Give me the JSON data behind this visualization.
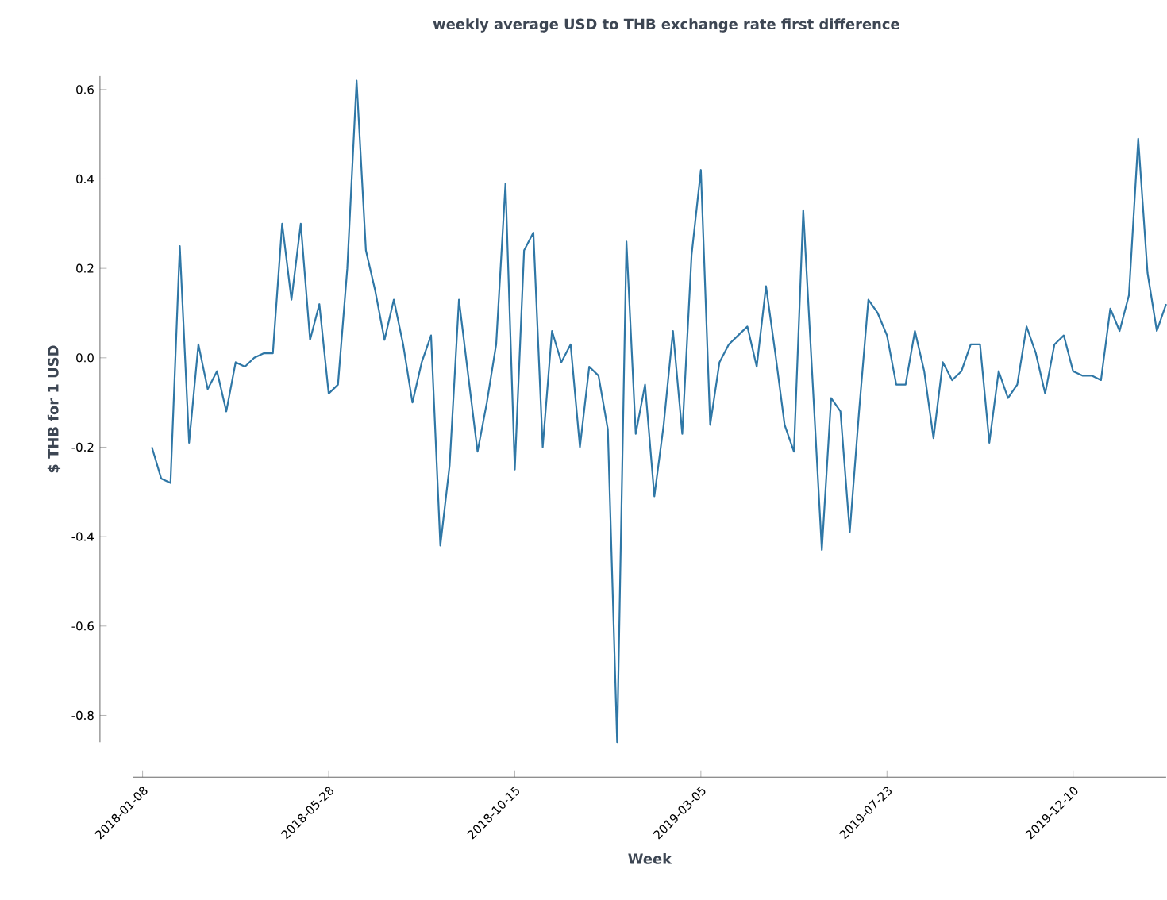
{
  "chart_data": {
    "type": "line",
    "title": "weekly average USD to THB exchange rate first difference",
    "xlabel": "Week",
    "ylabel": "$ THB for 1 USD",
    "categories": [
      "2018-01-08",
      null,
      null,
      null,
      null,
      null,
      null,
      null,
      null,
      null,
      null,
      null,
      null,
      null,
      null,
      null,
      null,
      null,
      null,
      null,
      "2018-05-28",
      null,
      null,
      null,
      null,
      null,
      null,
      null,
      null,
      null,
      null,
      null,
      null,
      null,
      null,
      null,
      null,
      null,
      null,
      null,
      "2018-10-15",
      null,
      null,
      null,
      null,
      null,
      null,
      null,
      null,
      null,
      null,
      null,
      null,
      null,
      null,
      null,
      null,
      null,
      null,
      null,
      "2019-03-05",
      null,
      null,
      null,
      null,
      null,
      null,
      null,
      null,
      null,
      null,
      null,
      null,
      null,
      null,
      null,
      null,
      null,
      null,
      null,
      "2019-07-23",
      null,
      null,
      null,
      null,
      null,
      null,
      null,
      null,
      null,
      null,
      null,
      null,
      null,
      null,
      null,
      null,
      null,
      null,
      null,
      "2019-12-10",
      null,
      null,
      null,
      null,
      null,
      null,
      null,
      null,
      null,
      null
    ],
    "values": [
      null,
      -0.2,
      -0.27,
      -0.28,
      0.25,
      -0.19,
      0.03,
      -0.07,
      -0.03,
      -0.12,
      -0.01,
      -0.02,
      0.0,
      0.01,
      0.01,
      0.3,
      0.13,
      0.3,
      0.04,
      0.12,
      -0.08,
      -0.06,
      0.2,
      0.62,
      0.24,
      0.15,
      0.04,
      0.13,
      0.03,
      -0.1,
      -0.01,
      0.05,
      -0.42,
      -0.24,
      0.13,
      -0.04,
      -0.21,
      -0.1,
      0.03,
      0.39,
      -0.25,
      0.24,
      0.28,
      -0.2,
      0.06,
      -0.01,
      0.03,
      -0.2,
      -0.02,
      -0.04,
      -0.16,
      -0.86,
      0.26,
      -0.17,
      -0.06,
      -0.31,
      -0.15,
      0.06,
      -0.17,
      0.23,
      0.42,
      -0.15,
      -0.01,
      0.03,
      0.05,
      0.07,
      -0.02,
      0.16,
      0.01,
      -0.15,
      -0.21,
      0.33,
      -0.05,
      -0.43,
      -0.09,
      -0.12,
      -0.39,
      -0.12,
      0.13,
      0.1,
      0.05,
      -0.06,
      -0.06,
      0.06,
      -0.03,
      -0.18,
      -0.01,
      -0.05,
      -0.03,
      0.03,
      0.03,
      -0.19,
      -0.03,
      -0.09,
      -0.06,
      0.07,
      0.01,
      -0.08,
      0.03,
      0.05,
      -0.03,
      -0.04,
      -0.04,
      -0.05,
      0.11,
      0.06,
      0.14,
      0.49,
      0.19,
      0.06,
      0.12
    ],
    "color": "#2f77a6",
    "ylim": [
      -0.86,
      0.63
    ],
    "yticks": [
      -0.8,
      -0.6,
      -0.4,
      -0.2,
      {
        "value": 0,
        "label": "0.0"
      },
      0.2,
      0.4,
      0.6
    ]
  }
}
